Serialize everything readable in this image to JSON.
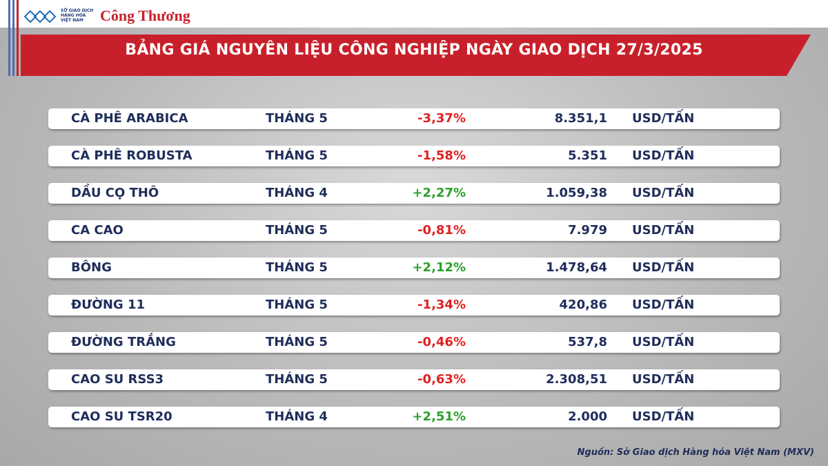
{
  "header": {
    "logo_lines": [
      "SỞ GIAO DỊCH",
      "HÀNG HÓA",
      "VIỆT NAM"
    ],
    "brand": "Công Thương",
    "title": "BẢNG GIÁ NGUYÊN LIỆU CÔNG NGHIỆP NGÀY GIAO DỊCH 27/3/2025"
  },
  "table": {
    "rows": [
      [
        "CÀ PHÊ ARABICA",
        "THÁNG 5",
        "-3,37%",
        "8.351,1",
        "USD/TẤN"
      ],
      [
        "CÀ PHÊ ROBUSTA",
        "THÁNG 5",
        "-1,58%",
        "5.351",
        "USD/TẤN"
      ],
      [
        "DẦU CỌ THÔ",
        "THÁNG 4",
        "+2,27%",
        "1.059,38",
        "USD/TẤN"
      ],
      [
        "CA CAO",
        "THÁNG 5",
        "-0,81%",
        "7.979",
        "USD/TẤN"
      ],
      [
        "BÔNG",
        "THÁNG 5",
        "+2,12%",
        "1.478,64",
        "USD/TẤN"
      ],
      [
        "ĐƯỜNG 11",
        "THÁNG 5",
        "-1,34%",
        "420,86",
        "USD/TẤN"
      ],
      [
        "ĐƯỜNG TRẮNG",
        "THÁNG 5",
        "-0,46%",
        "537,8",
        "USD/TẤN"
      ],
      [
        "CAO SU RSS3",
        "THÁNG 5",
        "-0,63%",
        "2.308,51",
        "USD/TẤN"
      ],
      [
        "CAO SU TSR20",
        "THÁNG 4",
        "+2,51%",
        "2.000",
        "USD/TẤN"
      ]
    ]
  },
  "footer": {
    "source": "Nguồn: Sở Giao dịch Hàng hóa Việt Nam (MXV)"
  }
}
